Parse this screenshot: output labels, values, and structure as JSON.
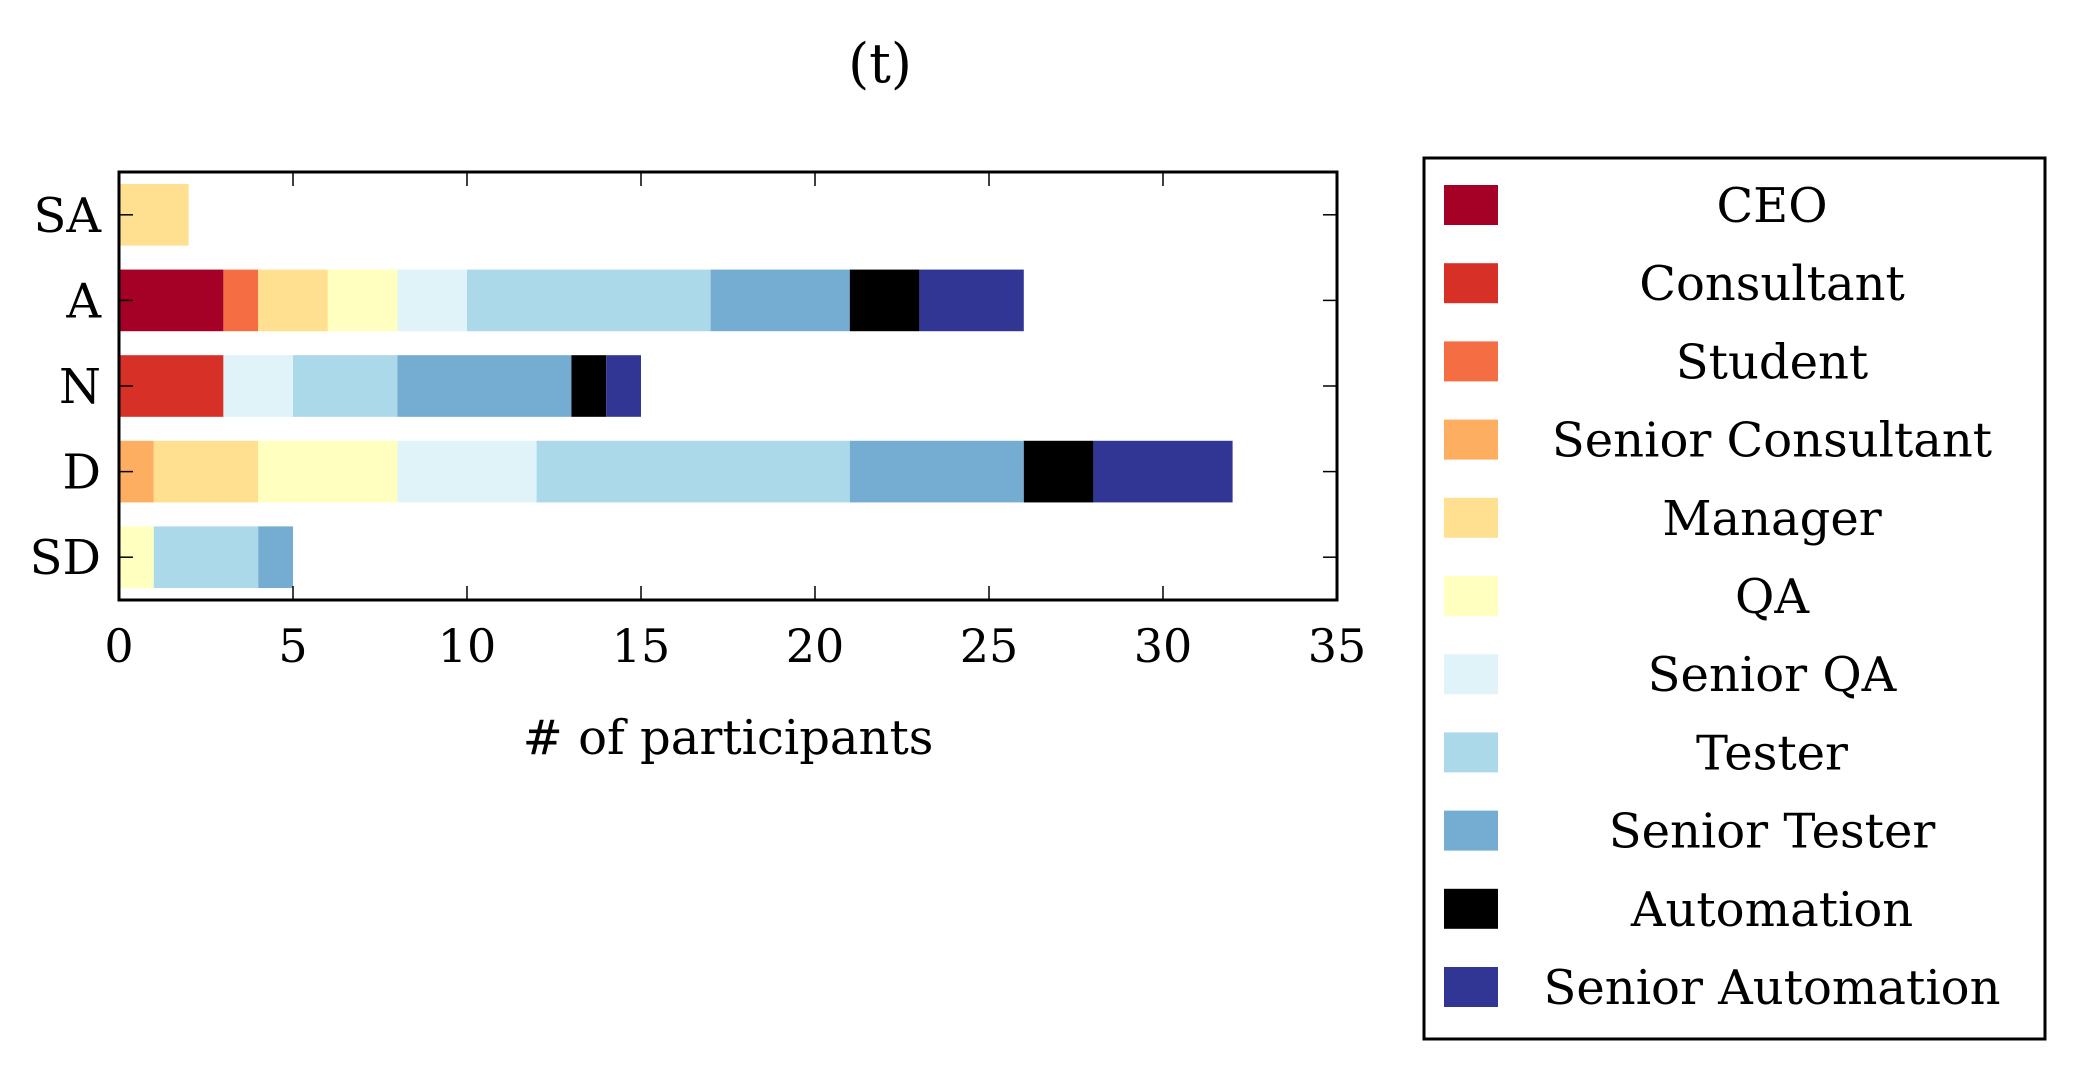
{
  "chart_data": {
    "type": "bar",
    "orientation": "horizontal",
    "stacked": true,
    "panel_label": "(t)",
    "xlabel": "# of participants",
    "ylabel": "",
    "xlim": [
      0,
      35
    ],
    "xticks": [
      0,
      5,
      10,
      15,
      20,
      25,
      30,
      35
    ],
    "grid": false,
    "legend_position": "right",
    "categories": [
      "SA",
      "A",
      "N",
      "D",
      "SD"
    ],
    "series": [
      {
        "name": "CEO",
        "color": "#a50026",
        "values": [
          0,
          3,
          0,
          0,
          0
        ]
      },
      {
        "name": "Consultant",
        "color": "#d73027",
        "values": [
          0,
          0,
          3,
          0,
          0
        ]
      },
      {
        "name": "Student",
        "color": "#f46d43",
        "values": [
          0,
          1,
          0,
          0,
          0
        ]
      },
      {
        "name": "Senior Consultant",
        "color": "#fdae61",
        "values": [
          0,
          0,
          0,
          1,
          0
        ]
      },
      {
        "name": "Manager",
        "color": "#fee090",
        "values": [
          2,
          2,
          0,
          3,
          0
        ]
      },
      {
        "name": "QA",
        "color": "#ffffbf",
        "values": [
          0,
          2,
          0,
          4,
          1
        ]
      },
      {
        "name": "Senior QA",
        "color": "#e0f3f8",
        "values": [
          0,
          2,
          2,
          4,
          0
        ]
      },
      {
        "name": "Tester",
        "color": "#abd9e9",
        "values": [
          0,
          7,
          3,
          9,
          3
        ]
      },
      {
        "name": "Senior Tester",
        "color": "#74add1",
        "values": [
          0,
          4,
          5,
          5,
          1
        ]
      },
      {
        "name": "Automation",
        "color": "#000000",
        "values": [
          0,
          2,
          1,
          2,
          0
        ]
      },
      {
        "name": "Senior Automation",
        "color": "#313695",
        "values": [
          0,
          3,
          1,
          4,
          0
        ]
      }
    ]
  }
}
